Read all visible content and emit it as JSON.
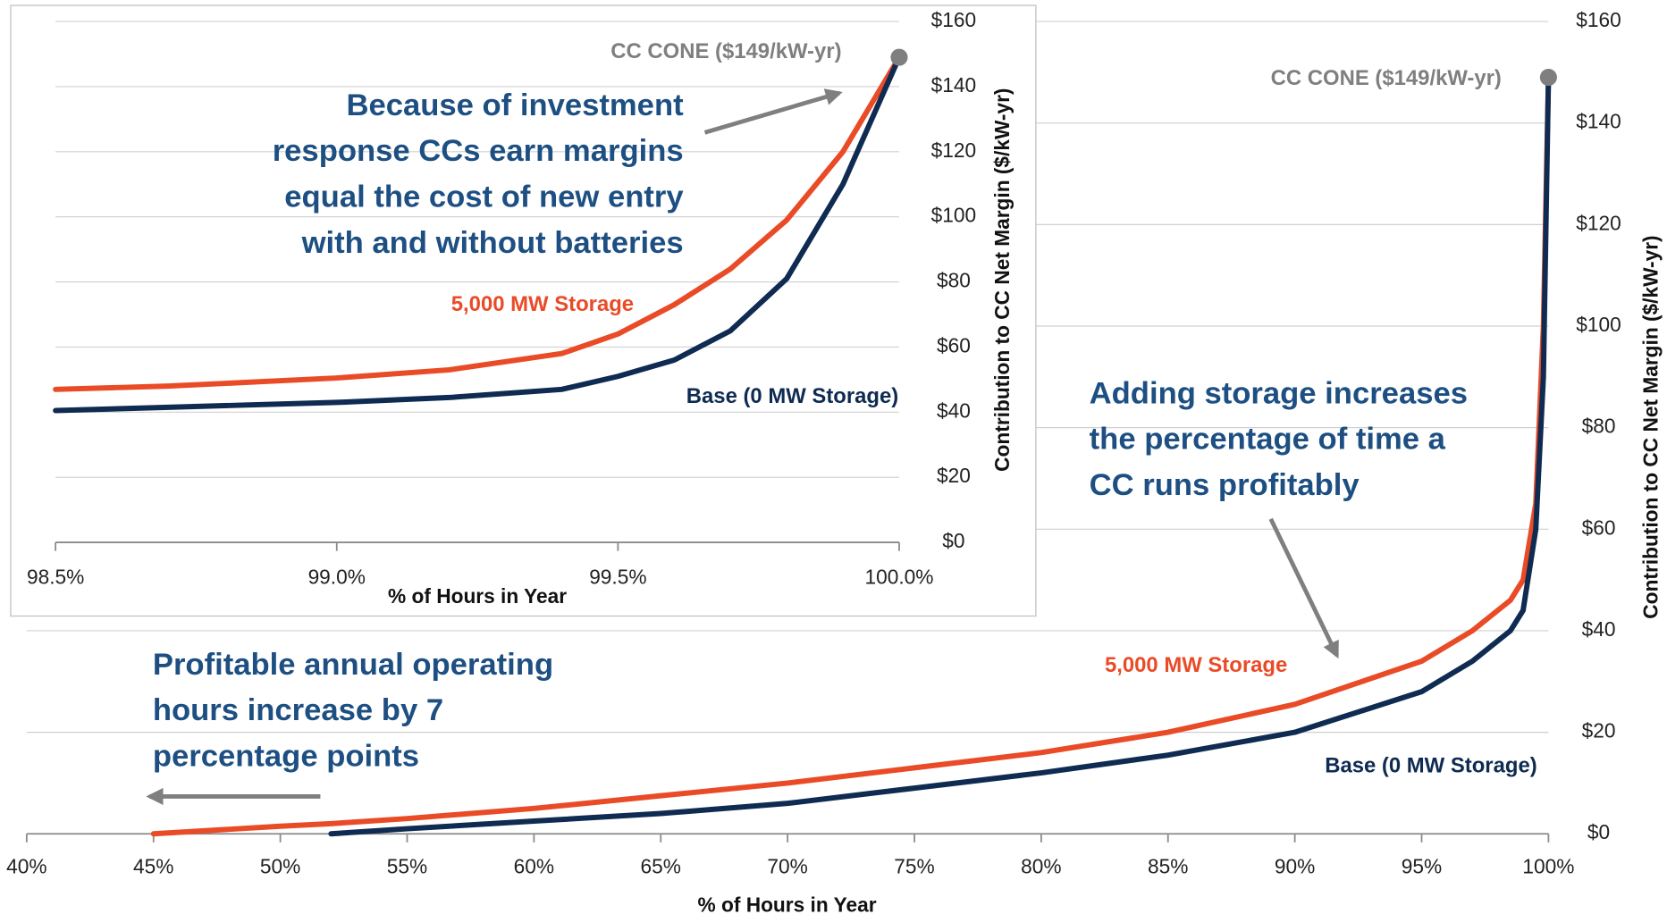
{
  "chart_data": [
    {
      "type": "line",
      "xlabel": "% of Hours in Year",
      "ylabel": "Contribution to CC Net Margin ($/kW-yr)",
      "xlim": [
        40,
        100
      ],
      "ylim": [
        0,
        160
      ],
      "xticks": [
        {
          "value": 40,
          "label": "40%"
        },
        {
          "value": 45,
          "label": "45%"
        },
        {
          "value": 50,
          "label": "50%"
        },
        {
          "value": 55,
          "label": "55%"
        },
        {
          "value": 60,
          "label": "60%"
        },
        {
          "value": 65,
          "label": "65%"
        },
        {
          "value": 70,
          "label": "70%"
        },
        {
          "value": 75,
          "label": "75%"
        },
        {
          "value": 80,
          "label": "80%"
        },
        {
          "value": 85,
          "label": "85%"
        },
        {
          "value": 90,
          "label": "90%"
        },
        {
          "value": 95,
          "label": "95%"
        },
        {
          "value": 100,
          "label": "100%"
        }
      ],
      "yticks": [
        {
          "value": 0,
          "label": "$0"
        },
        {
          "value": 20,
          "label": "$20"
        },
        {
          "value": 40,
          "label": "$40"
        },
        {
          "value": 60,
          "label": "$60"
        },
        {
          "value": 80,
          "label": "$80"
        },
        {
          "value": 100,
          "label": "$100"
        },
        {
          "value": 120,
          "label": "$120"
        },
        {
          "value": 140,
          "label": "$140"
        },
        {
          "value": 160,
          "label": "$160"
        }
      ],
      "grid": true,
      "x": [
        40,
        45,
        50,
        52,
        55,
        60,
        65,
        70,
        75,
        80,
        85,
        90,
        95,
        97,
        98.5,
        99,
        99.5,
        99.8,
        100
      ],
      "series": [
        {
          "name": "5,000 MW Storage",
          "color": "#ea4b27",
          "values": [
            null,
            0,
            1.5,
            2,
            3,
            5,
            7.5,
            10,
            13,
            16,
            20,
            25.5,
            34,
            40,
            46,
            50,
            65,
            100,
            149
          ]
        },
        {
          "name": "Base (0 MW Storage)",
          "color": "#0f2b52",
          "values": [
            null,
            null,
            null,
            0,
            1,
            2.5,
            4,
            6,
            9,
            12,
            15.5,
            20,
            28,
            34,
            40,
            44,
            60,
            90,
            149
          ]
        }
      ],
      "point": {
        "label": "CC CONE ($149/kW-yr)",
        "x": 100,
        "y": 149,
        "color": "#7f7f7f"
      },
      "annotations": [
        [
          "Adding storage increases",
          "the percentage of time a",
          "CC runs profitably"
        ],
        [
          "Profitable annual operating",
          "hours increase by 7",
          "percentage points"
        ]
      ]
    },
    {
      "type": "line",
      "xlabel": "% of Hours in Year",
      "ylabel": "Contribution to CC Net Margin ($/kW-yr)",
      "xlim": [
        98.5,
        100
      ],
      "ylim": [
        0,
        160
      ],
      "xticks": [
        {
          "value": 98.5,
          "label": "98.5%"
        },
        {
          "value": 99,
          "label": "99.0%"
        },
        {
          "value": 99.5,
          "label": "99.5%"
        },
        {
          "value": 100,
          "label": "100.0%"
        }
      ],
      "yticks": [
        {
          "value": 0,
          "label": "$0"
        },
        {
          "value": 20,
          "label": "$20"
        },
        {
          "value": 40,
          "label": "$40"
        },
        {
          "value": 60,
          "label": "$60"
        },
        {
          "value": 80,
          "label": "$80"
        },
        {
          "value": 100,
          "label": "$100"
        },
        {
          "value": 120,
          "label": "$120"
        },
        {
          "value": 140,
          "label": "$140"
        },
        {
          "value": 160,
          "label": "$160"
        }
      ],
      "grid": true,
      "x": [
        98.5,
        98.7,
        99.0,
        99.2,
        99.4,
        99.5,
        99.6,
        99.7,
        99.8,
        99.9,
        100
      ],
      "series": [
        {
          "name": "5,000 MW Storage",
          "color": "#ea4b27",
          "values": [
            47,
            48,
            50.5,
            53,
            58,
            64,
            73,
            84,
            99,
            120,
            149
          ]
        },
        {
          "name": "Base (0 MW Storage)",
          "color": "#0f2b52",
          "values": [
            40.5,
            41.5,
            43,
            44.5,
            47,
            51,
            56,
            65,
            81,
            110,
            149
          ]
        }
      ],
      "point": {
        "label": "CC CONE ($149/kW-yr)",
        "x": 100,
        "y": 149,
        "color": "#7f7f7f"
      },
      "annotations": [
        [
          "Because of investment",
          "response CCs earn margins",
          "equal the cost of new entry",
          "with and without batteries"
        ]
      ]
    }
  ]
}
